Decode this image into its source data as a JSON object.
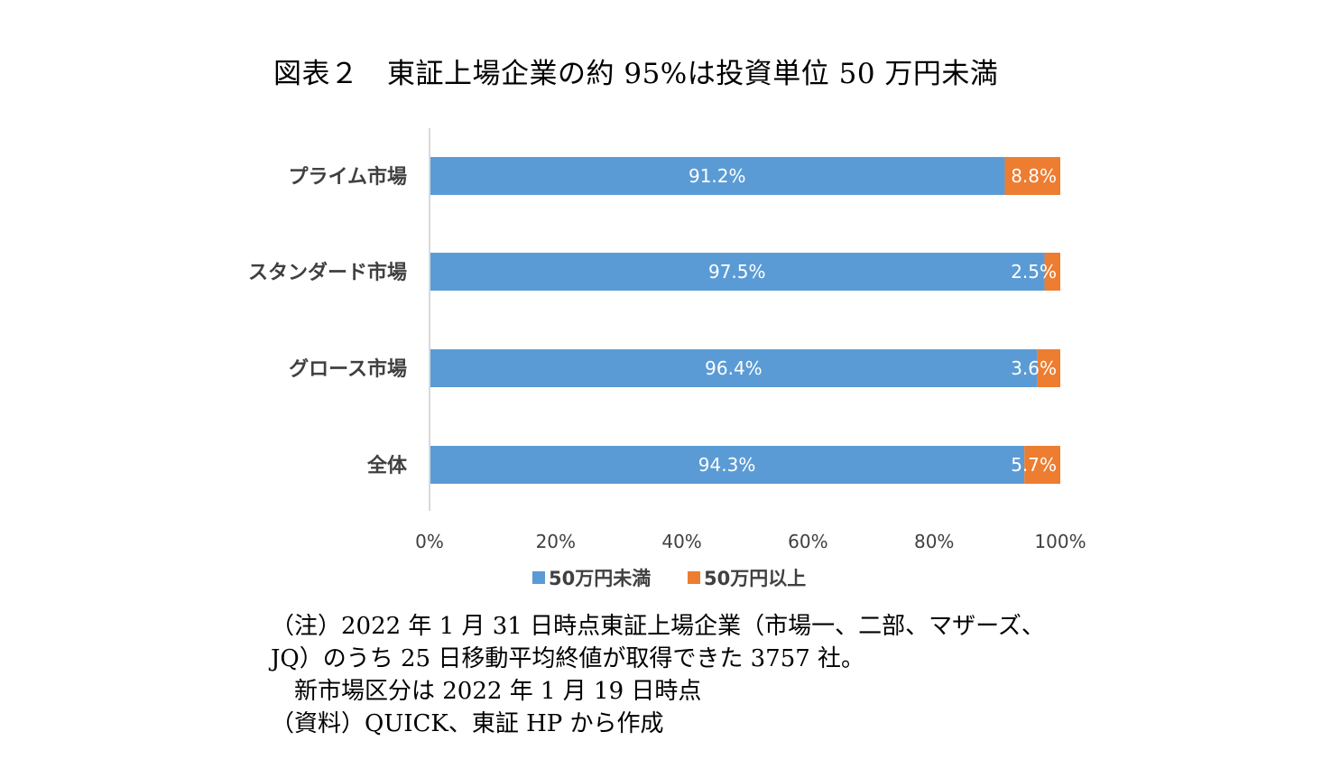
{
  "title": "図表２　東証上場企業の約 95%は投資単位 50 万円未満",
  "chart_data": {
    "type": "bar",
    "orientation": "horizontal",
    "stacked": "percent",
    "categories": [
      "プライム市場",
      "スタンダード市場",
      "グロース市場",
      "全体"
    ],
    "series": [
      {
        "name": "50万円未満",
        "values": [
          91.2,
          97.5,
          96.4,
          94.3
        ],
        "labels": [
          "91.2%",
          "97.5%",
          "96.4%",
          "94.3%"
        ],
        "color": "#5B9BD5"
      },
      {
        "name": "50万円以上",
        "values": [
          8.8,
          2.5,
          3.6,
          5.7
        ],
        "labels": [
          "8.8%",
          "2.5%",
          "3.6%",
          "5.7%"
        ],
        "color": "#ED7D31"
      }
    ],
    "xlim": [
      0,
      100
    ],
    "xticks": [
      0,
      20,
      40,
      60,
      80,
      100
    ],
    "xtick_labels": [
      "0%",
      "20%",
      "40%",
      "60%",
      "80%",
      "100%"
    ],
    "legend_position": "bottom",
    "grid": false
  },
  "notes": [
    "（注）2022 年 1 月 31 日時点東証上場企業（市場一、二部、マザーズ、",
    "JQ）のうち 25 日移動平均終値が取得できた 3757 社。",
    "　新市場区分は 2022 年 1 月 19 日時点",
    "（資料）QUICK、東証 HP から作成"
  ]
}
